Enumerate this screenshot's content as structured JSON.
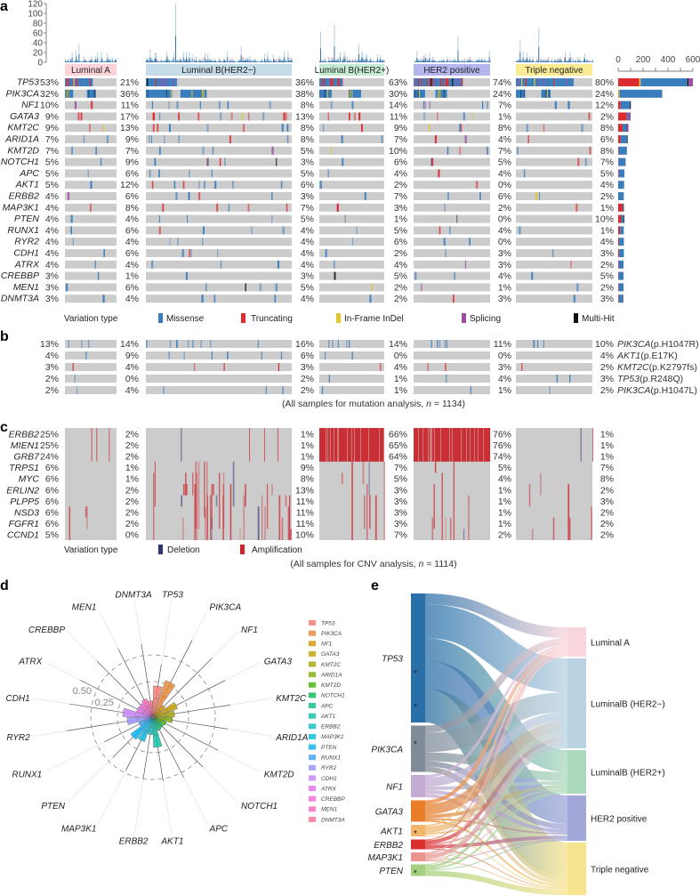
{
  "panel_labels": {
    "a": "a",
    "b": "b",
    "c": "c",
    "d": "d",
    "e": "e"
  },
  "colors": {
    "missense": "#3a7dbd",
    "truncating": "#dd2a2e",
    "inframe": "#e3c62b",
    "splicing": "#9a4fa5",
    "multihit": "#111111",
    "background": "#cccccc",
    "deletion": "#2f3470",
    "amplification": "#c9272d"
  },
  "chart_data": [
    {
      "type": "heatmap",
      "hist_ylim": [
        0,
        120
      ],
      "hist_ticks": [
        "120",
        "100",
        "80",
        "60",
        "40",
        "20",
        "0"
      ],
      "groups": [
        {
          "name": "Luminal A",
          "color": "#fbd3d9"
        },
        {
          "name": "Luminal B(HER2−)",
          "color": "#c4dbe8"
        },
        {
          "name": "Luminal B(HER2+)",
          "color": "#c5ebd0"
        },
        {
          "name": "HER2 positive",
          "color": "#b6b6ee"
        },
        {
          "name": "Triple negative",
          "color": "#fbeb95"
        }
      ],
      "genes": [
        "TP53",
        "PIK3CA",
        "NF1",
        "GATA3",
        "KMT2C",
        "ARID1A",
        "KMT2D",
        "NOTCH1",
        "APC",
        "AKT1",
        "ERBB2",
        "MAP3K1",
        "PTEN",
        "RUNX1",
        "RYR2",
        "CDH1",
        "ATRX",
        "CREBBP",
        "MEN1",
        "DNMT3A"
      ],
      "pct_columns": [
        [
          "53%",
          "32%",
          "10%",
          "9%",
          "9%",
          "7%",
          "7%",
          "5%",
          "5%",
          "5%",
          "4%",
          "4%",
          "4%",
          "4%",
          "4%",
          "4%",
          "4%",
          "3%",
          "3%",
          "3%"
        ],
        [
          "21%",
          "36%",
          "11%",
          "17%",
          "13%",
          "9%",
          "7%",
          "9%",
          "6%",
          "12%",
          "6%",
          "8%",
          "4%",
          "6%",
          "4%",
          "6%",
          "4%",
          "1%",
          "6%",
          "4%"
        ],
        [
          "36%",
          "38%",
          "8%",
          "13%",
          "8%",
          "8%",
          "5%",
          "3%",
          "5%",
          "6%",
          "3%",
          "7%",
          "5%",
          "4%",
          "4%",
          "4%",
          "4%",
          "3%",
          "5%",
          "4%"
        ],
        [
          "63%",
          "30%",
          "14%",
          "11%",
          "9%",
          "7%",
          "10%",
          "6%",
          "4%",
          "2%",
          "7%",
          "3%",
          "1%",
          "5%",
          "6%",
          "2%",
          "4%",
          "5%",
          "2%",
          "2%"
        ],
        [
          "74%",
          "24%",
          "7%",
          "1%",
          "8%",
          "4%",
          "7%",
          "5%",
          "4%",
          "0%",
          "6%",
          "2%",
          "0%",
          "4%",
          "0%",
          "3%",
          "3%",
          "4%",
          "1%",
          "3%"
        ],
        [
          "80%",
          "24%",
          "12%",
          "2%",
          "8%",
          "6%",
          "8%",
          "7%",
          "5%",
          "4%",
          "2%",
          "1%",
          "10%",
          "1%",
          "4%",
          "3%",
          "2%",
          "5%",
          "2%",
          "3%"
        ]
      ],
      "overall_ticks": [
        "0",
        "200",
        "400",
        "600"
      ],
      "overall_xlim": [
        0,
        600
      ],
      "overall_counts_by_type": {
        "order": [
          "missense",
          "truncating",
          "inframe",
          "splicing",
          "multihit"
        ],
        "values": [
          [
            375,
            170,
            10,
            35,
            10
          ],
          [
            340,
            3,
            8,
            0,
            2
          ],
          [
            75,
            20,
            0,
            3,
            5
          ],
          [
            12,
            70,
            0,
            18,
            0
          ],
          [
            30,
            35,
            0,
            15,
            3
          ],
          [
            50,
            20,
            0,
            0,
            6
          ],
          [
            65,
            5,
            0,
            0,
            0
          ],
          [
            55,
            2,
            0,
            0,
            2
          ],
          [
            45,
            5,
            0,
            0,
            0
          ],
          [
            48,
            0,
            0,
            0,
            0
          ],
          [
            45,
            0,
            0,
            0,
            0
          ],
          [
            5,
            35,
            0,
            0,
            5
          ],
          [
            20,
            25,
            0,
            0,
            5
          ],
          [
            30,
            15,
            0,
            0,
            0
          ],
          [
            38,
            8,
            0,
            0,
            0
          ],
          [
            38,
            8,
            0,
            0,
            0
          ],
          [
            38,
            5,
            0,
            0,
            0
          ],
          [
            40,
            3,
            0,
            0,
            0
          ],
          [
            38,
            5,
            0,
            0,
            0
          ],
          [
            33,
            5,
            0,
            0,
            3
          ]
        ]
      },
      "legend": {
        "title": "Variation type",
        "items": [
          {
            "key": "missense",
            "label": "Missense"
          },
          {
            "key": "truncating",
            "label": "Truncating"
          },
          {
            "key": "inframe",
            "label": "In-Frame InDel"
          },
          {
            "key": "splicing",
            "label": "Splicing"
          },
          {
            "key": "multihit",
            "label": "Multi-Hit"
          }
        ]
      }
    },
    {
      "type": "heatmap",
      "rows": [
        {
          "gene": "PIK3CA",
          "variant": "(p.H1047R)"
        },
        {
          "gene": "AKT1",
          "variant": "(p.E17K)"
        },
        {
          "gene": "KMT2C",
          "variant": "(p.K2797fs)"
        },
        {
          "gene": "TP53",
          "variant": "(p.R248Q)"
        },
        {
          "gene": "PIK3CA",
          "variant": "(p.H1047L)"
        }
      ],
      "pct_rows": [
        [
          "13%",
          "14%",
          "16%",
          "14%",
          "11%",
          "10%"
        ],
        [
          "4%",
          "9%",
          "6%",
          "0%",
          "0%",
          "4%"
        ],
        [
          "3%",
          "4%",
          "3%",
          "4%",
          "3%",
          "2%"
        ],
        [
          "2%",
          "0%",
          "2%",
          "1%",
          "4%",
          "3%"
        ],
        [
          "2%",
          "4%",
          "2%",
          "1%",
          "1%",
          "2%"
        ]
      ],
      "caption": {
        "prefix": "(All samples for mutation analysis, ",
        "n": "n",
        "suffix": " = 1134)"
      }
    },
    {
      "type": "heatmap",
      "genes": [
        "ERBB2",
        "MIEN1",
        "GRB7",
        "TRPS1",
        "MYC",
        "ERLIN2",
        "PLPP5",
        "NSD3",
        "FGFR1",
        "CCND1"
      ],
      "pct_columns": [
        [
          "25%",
          "25%",
          "24%",
          "6%",
          "6%",
          "6%",
          "6%",
          "6%",
          "6%",
          "5%"
        ],
        [
          "2%",
          "2%",
          "2%",
          "1%",
          "1%",
          "2%",
          "2%",
          "2%",
          "2%",
          "0%"
        ],
        [
          "1%",
          "1%",
          "1%",
          "9%",
          "8%",
          "13%",
          "11%",
          "11%",
          "11%",
          "10%"
        ],
        [
          "66%",
          "65%",
          "64%",
          "7%",
          "5%",
          "3%",
          "3%",
          "3%",
          "3%",
          "7%"
        ],
        [
          "76%",
          "76%",
          "74%",
          "5%",
          "4%",
          "1%",
          "1%",
          "1%",
          "1%",
          "2%"
        ],
        [
          "1%",
          "1%",
          "1%",
          "7%",
          "8%",
          "2%",
          "3%",
          "2%",
          "2%",
          "2%"
        ]
      ],
      "legend": {
        "title": "Variation type",
        "items": [
          {
            "key": "deletion",
            "label": "Deletion"
          },
          {
            "key": "amplification",
            "label": "Amplification"
          }
        ]
      },
      "caption": {
        "prefix": "(All samples for CNV analysis, ",
        "n": "n",
        "suffix": " = 1114)"
      }
    },
    {
      "type": "bar",
      "coord": "polar",
      "ring_labels": [
        "0.50",
        "0.25"
      ],
      "ring_values": [
        0.5,
        0.25
      ],
      "categories": [
        "TP53",
        "PIK3CA",
        "NF1",
        "GATA3",
        "KMT2C",
        "ARID1A",
        "KMT2D",
        "NOTCH1",
        "APC",
        "AKT1",
        "ERBB2",
        "MAP3K1",
        "PTEN",
        "RUNX1",
        "RYR2",
        "CDH1",
        "ATRX",
        "CREBBP",
        "MEN1",
        "DNMT3A"
      ],
      "values": [
        0.21,
        0.28,
        0.06,
        0.16,
        0.12,
        0.1,
        0.05,
        0.04,
        0.05,
        0.2,
        0.08,
        0.16,
        0.18,
        0.06,
        0.16,
        0.2,
        0.08,
        0.08,
        0.1,
        0.07
      ],
      "colors": [
        "#F8766D",
        "#EA8331",
        "#D89000",
        "#C09B00",
        "#A3A500",
        "#7CAE00",
        "#39B600",
        "#00BB4E",
        "#00BF7D",
        "#00C1A3",
        "#00BFC4",
        "#00BAE0",
        "#00B0F6",
        "#35A2FF",
        "#9590FF",
        "#C77CFF",
        "#E76BF3",
        "#FA62DB",
        "#FF62BC",
        "#FF6C91"
      ],
      "legend_position": "right"
    },
    {
      "type": "sankey",
      "sources": [
        {
          "name": "TP53",
          "color": "#2a6fa8",
          "star": 2
        },
        {
          "name": "PIK3CA",
          "color": "#808b97",
          "star": 1
        },
        {
          "name": "NF1",
          "color": "#c2aad2",
          "star": 0
        },
        {
          "name": "GATA3",
          "color": "#e97d2a",
          "star": 0
        },
        {
          "name": "AKT1",
          "color": "#f3b76c",
          "star": 1
        },
        {
          "name": "ERBB2",
          "color": "#d9302e",
          "star": 0
        },
        {
          "name": "MAP3K1",
          "color": "#ea9490",
          "star": 0
        },
        {
          "name": "PTEN",
          "color": "#a5cf7e",
          "star": 1
        }
      ],
      "targets": [
        {
          "name": "Luminal A",
          "color": "#f8d6dc"
        },
        {
          "name": "LuminalB (HER2−)",
          "color": "#b9d3e2"
        },
        {
          "name": "LuminalB (HER2+)",
          "color": "#aad9bd"
        },
        {
          "name": "HER2 positive",
          "color": "#a3a6d8"
        },
        {
          "name": "Triple negative",
          "color": "#f6e48f"
        }
      ],
      "flows": [
        [
          12,
          38,
          25,
          32,
          38
        ],
        [
          8,
          22,
          10,
          6,
          6
        ],
        [
          3,
          10,
          4,
          4,
          4
        ],
        [
          4,
          12,
          4,
          2,
          2
        ],
        [
          2,
          7,
          2,
          1,
          1
        ],
        [
          1,
          4,
          1,
          4,
          1
        ],
        [
          2,
          5,
          1,
          1,
          1
        ],
        [
          1,
          3,
          2,
          1,
          6
        ]
      ],
      "star_symbol": "*"
    }
  ]
}
